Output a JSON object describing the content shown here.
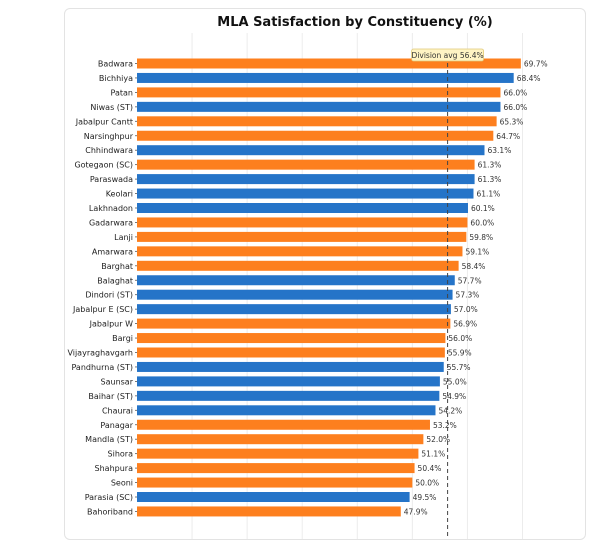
{
  "chart_data": {
    "type": "bar",
    "orientation": "horizontal",
    "title": "MLA Satisfaction by Constituency (%)",
    "xlabel": "",
    "ylabel": "",
    "xlim": [
      0,
      75
    ],
    "grid": true,
    "value_suffix": "%",
    "reference_line": {
      "label": "Division avg 56.4%",
      "value": 56.4
    },
    "colors": {
      "orange": "#fd7f1e",
      "blue": "#2574c8"
    },
    "categories": [
      "Badwara",
      "Bichhiya",
      "Patan",
      "Niwas (ST)",
      "Jabalpur Cantt",
      "Narsinghpur",
      "Chhindwara",
      "Gotegaon (SC)",
      "Paraswada",
      "Keolari",
      "Lakhnadon",
      "Gadarwara",
      "Lanji",
      "Amarwara",
      "Barghat",
      "Balaghat",
      "Dindori (ST)",
      "Jabalpur E (SC)",
      "Jabalpur W",
      "Bargi",
      "Vijayraghavgarh",
      "Pandhurna (ST)",
      "Saunsar",
      "Baihar (ST)",
      "Chaurai",
      "Panagar",
      "Mandla (ST)",
      "Sihora",
      "Shahpura",
      "Seoni",
      "Parasia (SC)",
      "Bahoriband"
    ],
    "values": [
      69.7,
      68.4,
      66.0,
      66.0,
      65.3,
      64.7,
      63.1,
      61.3,
      61.3,
      61.1,
      60.1,
      60.0,
      59.8,
      59.1,
      58.4,
      57.7,
      57.3,
      57.0,
      56.9,
      56.0,
      55.9,
      55.7,
      55.0,
      54.9,
      54.2,
      53.2,
      52.0,
      51.1,
      50.4,
      50.0,
      49.5,
      47.9
    ],
    "bar_colors": [
      "orange",
      "blue",
      "orange",
      "blue",
      "orange",
      "orange",
      "blue",
      "orange",
      "blue",
      "blue",
      "blue",
      "orange",
      "orange",
      "orange",
      "orange",
      "blue",
      "blue",
      "blue",
      "orange",
      "orange",
      "orange",
      "blue",
      "blue",
      "blue",
      "blue",
      "orange",
      "orange",
      "orange",
      "orange",
      "orange",
      "blue",
      "orange"
    ]
  }
}
